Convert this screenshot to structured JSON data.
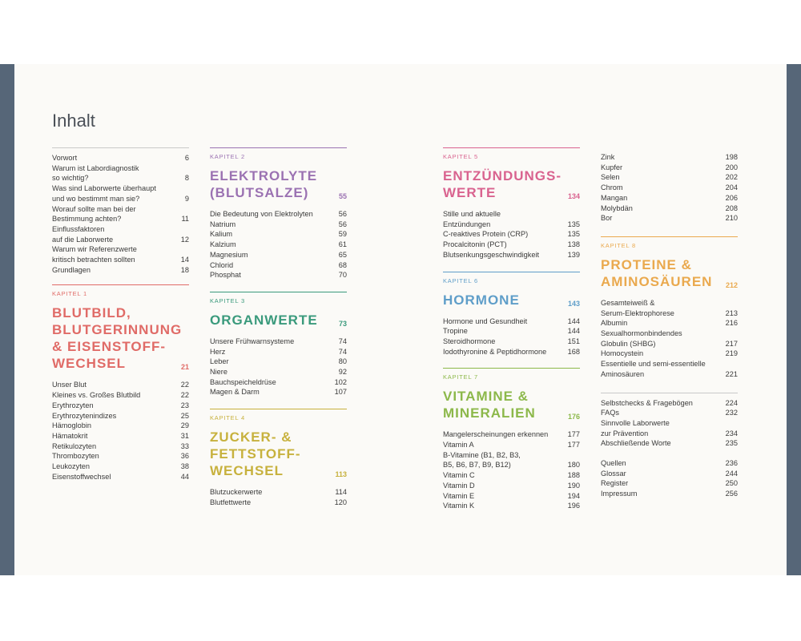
{
  "title": "Inhalt",
  "colors": {
    "frame": "#566678",
    "page": "#fbfaf7",
    "ch1": "#e06b67",
    "ch2": "#9b72b2",
    "ch3": "#3a9a7c",
    "ch4": "#c7b13d",
    "ch5": "#d9638f",
    "ch6": "#5f9ec9",
    "ch7": "#8cb84a",
    "ch8": "#eaa94e"
  },
  "intro": [
    {
      "label": "Vorwort",
      "page": "6"
    },
    {
      "label": "Warum ist Labordiagnostik",
      "page": ""
    },
    {
      "label": "so wichtig?",
      "page": "8"
    },
    {
      "label": "Was sind Laborwerte überhaupt",
      "page": ""
    },
    {
      "label": "und wo bestimmt man sie?",
      "page": "9"
    },
    {
      "label": "Worauf sollte man bei der",
      "page": ""
    },
    {
      "label": "Bestimmung achten?",
      "page": "11"
    },
    {
      "label": "Einflussfaktoren",
      "page": ""
    },
    {
      "label": "auf die Laborwerte",
      "page": "12"
    },
    {
      "label": "Warum wir Referenzwerte",
      "page": ""
    },
    {
      "label": "kritisch betrachten sollten",
      "page": "14"
    },
    {
      "label": "Grundlagen",
      "page": "18"
    }
  ],
  "chapters": [
    {
      "kapitel": "KAPITEL 1",
      "heading_lines": [
        "BLUTBILD,",
        "BLUTGERINNUNG",
        "& EISENSTOFF-",
        "WECHSEL"
      ],
      "page": "21",
      "entries": [
        {
          "label": "Unser Blut",
          "page": "22"
        },
        {
          "label": "Kleines vs. Großes Blutbild",
          "page": "22"
        },
        {
          "label": "Erythrozyten",
          "page": "23"
        },
        {
          "label": "Erythrozytenindizes",
          "page": "25"
        },
        {
          "label": "Hämoglobin",
          "page": "29"
        },
        {
          "label": "Hämatokrit",
          "page": "31"
        },
        {
          "label": "Retikulozyten",
          "page": "33"
        },
        {
          "label": "Thrombozyten",
          "page": "36"
        },
        {
          "label": "Leukozyten",
          "page": "38"
        },
        {
          "label": "Eisenstoffwechsel",
          "page": "44"
        }
      ]
    },
    {
      "kapitel": "KAPITEL 2",
      "heading_lines": [
        "ELEKTROLYTE",
        "(BLUTSALZE)"
      ],
      "page": "55",
      "entries": [
        {
          "label": "Die Bedeutung von Elektrolyten",
          "page": "56"
        },
        {
          "label": "Natrium",
          "page": "56"
        },
        {
          "label": "Kalium",
          "page": "59"
        },
        {
          "label": "Kalzium",
          "page": "61"
        },
        {
          "label": "Magnesium",
          "page": "65"
        },
        {
          "label": "Chlorid",
          "page": "68"
        },
        {
          "label": "Phosphat",
          "page": "70"
        }
      ]
    },
    {
      "kapitel": "KAPITEL 3",
      "heading_lines": [
        "ORGANWERTE"
      ],
      "page": "73",
      "entries": [
        {
          "label": "Unsere Frühwarnsysteme",
          "page": "74"
        },
        {
          "label": "Herz",
          "page": "74"
        },
        {
          "label": "Leber",
          "page": "80"
        },
        {
          "label": "Niere",
          "page": "92"
        },
        {
          "label": "Bauchspeicheldrüse",
          "page": "102"
        },
        {
          "label": "Magen & Darm",
          "page": "107"
        }
      ]
    },
    {
      "kapitel": "KAPITEL 4",
      "heading_lines": [
        "ZUCKER- &",
        "FETTSTOFF-",
        "WECHSEL"
      ],
      "page": "113",
      "entries": [
        {
          "label": "Blutzuckerwerte",
          "page": "114"
        },
        {
          "label": "Blutfettwerte",
          "page": "120"
        }
      ]
    },
    {
      "kapitel": "KAPITEL 5",
      "heading_lines": [
        "ENTZÜNDUNGS-",
        "WERTE"
      ],
      "page": "134",
      "entries": [
        {
          "label": "Stille und aktuelle",
          "page": ""
        },
        {
          "label": "Entzündungen",
          "page": "135"
        },
        {
          "label": "C-reaktives Protein (CRP)",
          "page": "135"
        },
        {
          "label": "Procalcitonin (PCT)",
          "page": "138"
        },
        {
          "label": "Blutsenkungsgeschwindigkeit",
          "page": "139"
        }
      ]
    },
    {
      "kapitel": "KAPITEL 6",
      "heading_lines": [
        "HORMONE"
      ],
      "page": "143",
      "entries": [
        {
          "label": "Hormone und Gesundheit",
          "page": "144"
        },
        {
          "label": "Tropine",
          "page": "144"
        },
        {
          "label": "Steroidhormone",
          "page": "151"
        },
        {
          "label": "Iodothyronine & Peptidhormone",
          "page": "168"
        }
      ]
    },
    {
      "kapitel": "KAPITEL 7",
      "heading_lines": [
        "VITAMINE &",
        "MINERALIEN"
      ],
      "page": "176",
      "entries": [
        {
          "label": "Mangelerscheinungen erkennen",
          "page": "177"
        },
        {
          "label": "Vitamin A",
          "page": "177"
        },
        {
          "label": "B-Vitamine (B1, B2, B3,",
          "page": ""
        },
        {
          "label": "B5, B6, B7, B9, B12)",
          "page": "180"
        },
        {
          "label": "Vitamin C",
          "page": "188"
        },
        {
          "label": "Vitamin D",
          "page": "190"
        },
        {
          "label": "Vitamin E",
          "page": "194"
        },
        {
          "label": "Vitamin K",
          "page": "196"
        }
      ]
    },
    {
      "kapitel": "KAPITEL 8",
      "heading_lines": [
        "PROTEINE &",
        "AMINOSÄUREN"
      ],
      "page": "212",
      "entries": [
        {
          "label": "Gesamteiweiß &",
          "page": ""
        },
        {
          "label": "Serum-Elektrophorese",
          "page": "213"
        },
        {
          "label": "Albumin",
          "page": "216"
        },
        {
          "label": "Sexualhormonbindendes",
          "page": ""
        },
        {
          "label": "Globulin (SHBG)",
          "page": "217"
        },
        {
          "label": "Homocystein",
          "page": "219"
        },
        {
          "label": "Essentielle und semi-essentielle",
          "page": ""
        },
        {
          "label": "Aminosäuren",
          "page": "221"
        }
      ]
    }
  ],
  "minerals_cont": [
    {
      "label": "Zink",
      "page": "198"
    },
    {
      "label": "Kupfer",
      "page": "200"
    },
    {
      "label": "Selen",
      "page": "202"
    },
    {
      "label": "Chrom",
      "page": "204"
    },
    {
      "label": "Mangan",
      "page": "206"
    },
    {
      "label": "Molybdän",
      "page": "208"
    },
    {
      "label": "Bor",
      "page": "210"
    }
  ],
  "appendix_a": [
    {
      "label": "Selbstchecks & Fragebögen",
      "page": "224"
    },
    {
      "label": "FAQs",
      "page": "232"
    },
    {
      "label": "Sinnvolle Laborwerte",
      "page": ""
    },
    {
      "label": "zur Prävention",
      "page": "234"
    },
    {
      "label": "Abschließende Worte",
      "page": "235"
    }
  ],
  "appendix_b": [
    {
      "label": "Quellen",
      "page": "236"
    },
    {
      "label": "Glossar",
      "page": "244"
    },
    {
      "label": "Register",
      "page": "250"
    },
    {
      "label": "Impressum",
      "page": "256"
    }
  ]
}
